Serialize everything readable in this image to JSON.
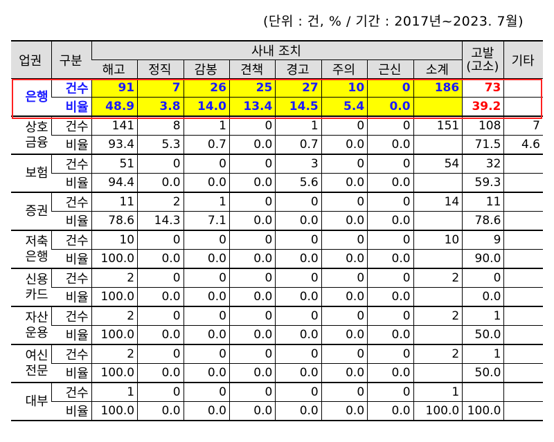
{
  "unit_note": "(단위 : 건, % / 기간 : 2017년~2023. 7월)",
  "header": {
    "sector": "업권",
    "kind": "구분",
    "internal": "사내 조치",
    "cols": [
      "해고",
      "정직",
      "감봉",
      "견책",
      "경고",
      "주의",
      "근신",
      "소계"
    ],
    "complaint": "고발\n(고소)",
    "etc": "기타"
  },
  "labels": {
    "count": "건수",
    "rate": "비율"
  },
  "rows": [
    {
      "sector": "은행",
      "count": [
        "91",
        "7",
        "26",
        "25",
        "27",
        "10",
        "0",
        "186",
        "73",
        ""
      ],
      "rate": [
        "48.9",
        "3.8",
        "14.0",
        "13.4",
        "14.5",
        "5.4",
        "0.0",
        "",
        "39.2",
        ""
      ]
    },
    {
      "sector": "상호\n금융",
      "count": [
        "141",
        "8",
        "1",
        "0",
        "1",
        "0",
        "0",
        "151",
        "108",
        "7"
      ],
      "rate": [
        "93.4",
        "5.3",
        "0.7",
        "0.0",
        "0.7",
        "0.0",
        "0.0",
        "",
        "71.5",
        "4.6"
      ]
    },
    {
      "sector": "보험",
      "count": [
        "51",
        "0",
        "0",
        "0",
        "3",
        "0",
        "0",
        "54",
        "32",
        ""
      ],
      "rate": [
        "94.4",
        "0.0",
        "0.0",
        "0.0",
        "5.6",
        "0.0",
        "0.0",
        "",
        "59.3",
        ""
      ]
    },
    {
      "sector": "증권",
      "count": [
        "11",
        "2",
        "1",
        "0",
        "0",
        "0",
        "0",
        "14",
        "11",
        ""
      ],
      "rate": [
        "78.6",
        "14.3",
        "7.1",
        "0.0",
        "0.0",
        "0.0",
        "0.0",
        "",
        "78.6",
        ""
      ]
    },
    {
      "sector": "저축\n은행",
      "count": [
        "10",
        "0",
        "0",
        "0",
        "0",
        "0",
        "0",
        "10",
        "9",
        ""
      ],
      "rate": [
        "100.0",
        "0.0",
        "0.0",
        "0.0",
        "0.0",
        "0.0",
        "0.0",
        "",
        "90.0",
        ""
      ]
    },
    {
      "sector": "신용\n카드",
      "count": [
        "2",
        "0",
        "0",
        "0",
        "0",
        "0",
        "0",
        "2",
        "0",
        ""
      ],
      "rate": [
        "100.0",
        "0.0",
        "0.0",
        "0.0",
        "0.0",
        "0.0",
        "0.0",
        "",
        "0.0",
        ""
      ]
    },
    {
      "sector": "자산\n운용",
      "count": [
        "2",
        "0",
        "0",
        "0",
        "0",
        "0",
        "0",
        "2",
        "1",
        ""
      ],
      "rate": [
        "100.0",
        "0.0",
        "0.0",
        "0.0",
        "0.0",
        "0.0",
        "0.0",
        "",
        "50.0",
        ""
      ]
    },
    {
      "sector": "여신\n전문",
      "count": [
        "2",
        "0",
        "0",
        "0",
        "0",
        "0",
        "0",
        "2",
        "1",
        ""
      ],
      "rate": [
        "100.0",
        "0.0",
        "0.0",
        "0.0",
        "0.0",
        "0.0",
        "0.0",
        "",
        "50.0",
        ""
      ]
    },
    {
      "sector": "대부",
      "count": [
        "1",
        "0",
        "0",
        "0",
        "0",
        "0",
        "0",
        "1",
        "",
        ""
      ],
      "rate": [
        "100.0",
        "0.0",
        "0.0",
        "0.0",
        "0.0",
        "0.0",
        "0.0",
        "100.0",
        "100.0",
        ""
      ]
    }
  ],
  "colors": {
    "highlight": "#ffff00",
    "bank_text": "#1a1aff",
    "accent_red": "#ff0000",
    "header_bg": "#dfdfdf"
  }
}
